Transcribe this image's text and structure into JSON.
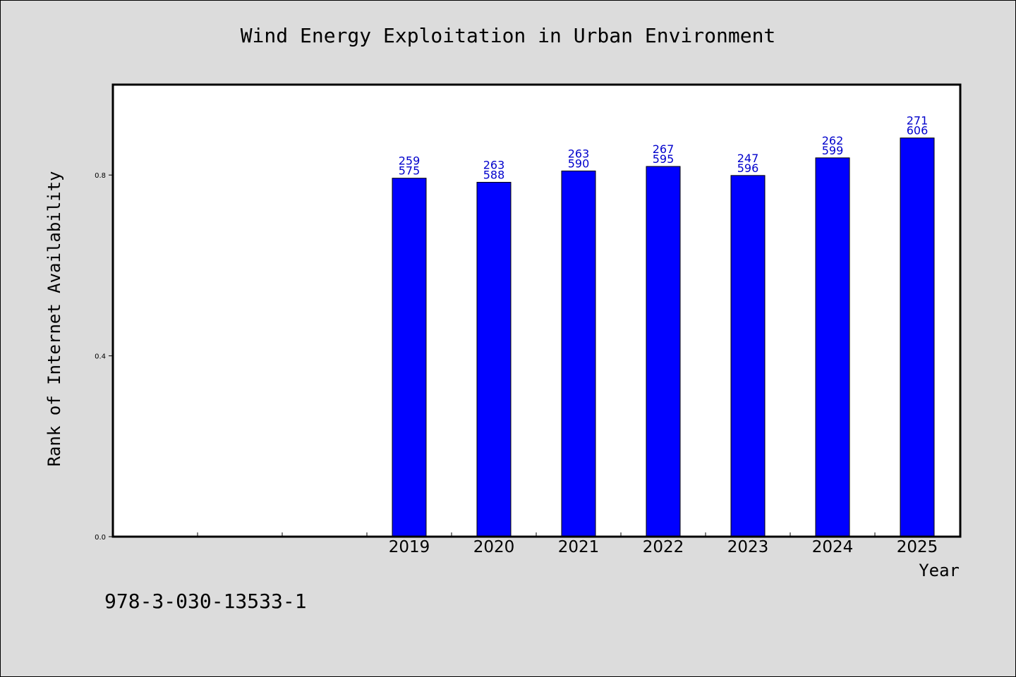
{
  "chart_data": {
    "type": "bar",
    "title": "Wind Energy Exploitation in Urban Environment",
    "xlabel": "Year",
    "ylabel": "Rank of Internet Availability",
    "categories": [
      "2019",
      "2020",
      "2021",
      "2022",
      "2023",
      "2024",
      "2025"
    ],
    "values": [
      0.793,
      0.784,
      0.809,
      0.819,
      0.799,
      0.838,
      0.882
    ],
    "data_labels": [
      [
        "259",
        "575"
      ],
      [
        "263",
        "588"
      ],
      [
        "263",
        "590"
      ],
      [
        "267",
        "595"
      ],
      [
        "247",
        "596"
      ],
      [
        "262",
        "599"
      ],
      [
        "271",
        "606"
      ]
    ],
    "ylim": [
      0,
      1.0
    ],
    "yticks": [
      0.0,
      0.4,
      0.8
    ],
    "ytick_labels": [
      "0.0",
      "0.4",
      "0.8"
    ],
    "empty_leading_slots": 3,
    "bar_color": "#0000ff",
    "label_color": "#0000cc",
    "plot_background": "#ffffff",
    "page_background": "#dcdcdc",
    "grid": false,
    "legend": "none"
  },
  "footer_text": "978-3-030-13533-1"
}
